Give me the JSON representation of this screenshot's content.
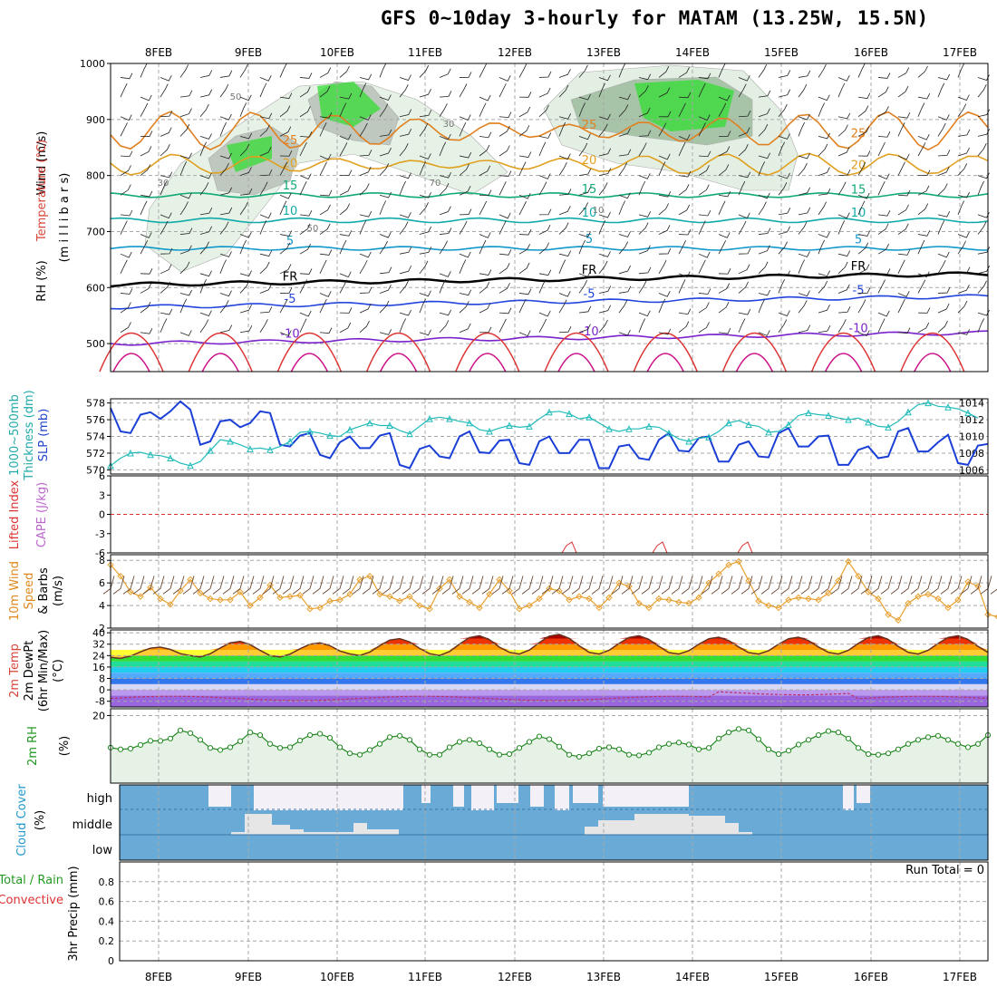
{
  "title": "GFS 0~10day 3-hourly for MATAM (13.25W, 15.5N)",
  "colors": {
    "rh_green": "#33dd33",
    "rh_grey": "#c8d8c8",
    "slp_line": "#1a3fd6",
    "thickness_line": "#22bbbb",
    "wind_speed_line": "#e8a030",
    "rh2m_line": "#228822",
    "rh2m_fill": "#e6f2e6",
    "cloud_blue": "#6aaad6",
    "cloud_white": "#f3f0f8",
    "cloud_grey": "#e6e6e6",
    "freezing_line": "#000000"
  },
  "chart_data": {
    "type": "meteogram",
    "date_labels": [
      "8FEB",
      "9FEB",
      "10FEB",
      "11FEB",
      "12FEB",
      "13FEB",
      "14FEB",
      "15FEB",
      "16FEB",
      "17FEB"
    ],
    "time_step_hours": 3,
    "run_total_label": "Run Total = 0",
    "panels": [
      {
        "name": "upper-air",
        "ylabels": [
          "Wind (m/s)",
          "Temperature (°C)",
          "RH (%)",
          "(m i l l i b a r s)"
        ],
        "yticks": [
          500,
          600,
          700,
          800,
          900,
          1000
        ],
        "ylim": [
          450,
          1000
        ],
        "isotherm_labels": [
          {
            "value": "-10",
            "color": "#7a22cc",
            "level": 500
          },
          {
            "value": "-5",
            "color": "#2244dd",
            "level": 565
          },
          {
            "value": "FR",
            "color": "#000000",
            "level": 605
          },
          {
            "value": "5",
            "color": "#1199cc",
            "level": 670
          },
          {
            "value": "10",
            "color": "#11aaaa",
            "level": 720
          },
          {
            "value": "15",
            "color": "#11aa77",
            "level": 765
          },
          {
            "value": "20",
            "color": "#e0a020",
            "level": 820
          },
          {
            "value": "25",
            "color": "#e08020",
            "level": 880
          }
        ],
        "rh_contour_labels": [
          "50",
          "30",
          "70",
          "10"
        ]
      },
      {
        "name": "thickness-slp",
        "ylabels": [
          "1000~500mb",
          "Thickness (dm)",
          "SLP (mb)"
        ],
        "left_ticks": [
          570,
          572,
          574,
          576,
          578
        ],
        "right_ticks": [
          1006,
          1008,
          1010,
          1012,
          1014
        ],
        "series": [
          {
            "name": "SLP",
            "values": [
              1013.4,
              1010.6,
              1010.4,
              1012.6,
              1012.9,
              1012.1,
              1013.0,
              1014.2,
              1013.2,
              1009.0,
              1009.4,
              1011.8,
              1012.0,
              1011.1,
              1011.6,
              1013.0,
              1012.8,
              1009.0,
              1008.8,
              1010.1,
              1010.4,
              1007.8,
              1007.4,
              1009.3,
              1010.0,
              1008.6,
              1008.6,
              1010.1,
              1010.4,
              1006.6,
              1006.2,
              1008.5,
              1008.9,
              1007.6,
              1007.4,
              1010.0,
              1010.6,
              1008.1,
              1008.0,
              1009.5,
              1009.6,
              1006.8,
              1006.6,
              1009.4,
              1010.0,
              1008.0,
              1008.0,
              1009.6,
              1009.6,
              1006.2,
              1006.2,
              1008.8,
              1009.0,
              1007.4,
              1007.2,
              1009.6,
              1010.4,
              1008.3,
              1008.2,
              1009.8,
              1010.0,
              1007.0,
              1007.0,
              1009.0,
              1009.4,
              1007.6,
              1007.5,
              1010.4,
              1011.0,
              1008.8,
              1008.8,
              1010.0,
              1010.1,
              1006.6,
              1006.6,
              1008.4,
              1008.8,
              1007.4,
              1007.6,
              1010.6,
              1011.0,
              1008.2,
              1008.2,
              1009.3,
              1010.2,
              1006.8,
              1006.6,
              1008.9,
              1009.1
            ]
          },
          {
            "name": "Thickness",
            "values": [
              570.5,
              571.4,
              572.0,
              572.1,
              571.8,
              571.7,
              571.4,
              570.8,
              570.5,
              571.0,
              572.3,
              573.6,
              573.4,
              573.0,
              572.5,
              572.6,
              572.4,
              572.8,
              573.4,
              574.5,
              574.6,
              574.4,
              574.1,
              574.0,
              574.8,
              575.2,
              575.6,
              575.3,
              575.3,
              574.7,
              574.3,
              575.2,
              576.1,
              576.3,
              576.1,
              575.8,
              575.6,
              574.8,
              574.6,
              575.0,
              575.3,
              575.1,
              575.2,
              576.1,
              576.9,
              577.0,
              576.7,
              576.1,
              576.3,
              575.6,
              574.9,
              574.6,
              574.9,
              574.9,
              575.2,
              575.1,
              574.4,
              573.7,
              573.4,
              573.8,
              573.9,
              574.6,
              575.6,
              575.9,
              575.4,
              575.2,
              574.5,
              574.6,
              575.4,
              576.5,
              576.8,
              576.6,
              576.5,
              576.2,
              576.0,
              576.2,
              575.7,
              575.2,
              575.1,
              575.8,
              576.9,
              577.8,
              578.0,
              577.6,
              577.5,
              577.3,
              576.8,
              576.2
            ]
          }
        ]
      },
      {
        "name": "lifted-index-cape",
        "ylabels": [
          "Lifted Index",
          "CAPE (J/kg)"
        ],
        "yticks": [
          6,
          3,
          0,
          -3,
          -6
        ],
        "ylim": [
          6,
          -6
        ],
        "reference_line": 0
      },
      {
        "name": "wind10m",
        "ylabels": [
          "10m Wind",
          "Speed",
          "& Barbs",
          "(m/s)"
        ],
        "yticks": [
          2,
          4,
          6,
          8
        ],
        "ylim": [
          2,
          8.5
        ],
        "series": [
          {
            "name": "Speed",
            "values": [
              7.6,
              6.6,
              5.2,
              4.8,
              5.6,
              4.6,
              4.1,
              5.3,
              6.3,
              5.1,
              4.6,
              4.5,
              4.5,
              5.2,
              4.0,
              4.7,
              5.8,
              4.7,
              4.8,
              4.9,
              3.7,
              3.8,
              4.4,
              4.5,
              5.0,
              6.3,
              6.6,
              5.0,
              4.8,
              4.4,
              4.8,
              4.0,
              3.7,
              5.5,
              6.3,
              4.8,
              4.3,
              3.8,
              5.0,
              6.3,
              5.3,
              3.7,
              4.0,
              4.6,
              5.5,
              5.3,
              4.5,
              4.8,
              4.6,
              3.8,
              4.7,
              6.0,
              5.7,
              4.2,
              3.8,
              4.6,
              4.5,
              4.3,
              4.2,
              4.7,
              6.0,
              6.8,
              7.6,
              7.9,
              6.2,
              4.4,
              4.0,
              3.8,
              4.5,
              4.7,
              4.6,
              4.5,
              5.1,
              6.2,
              7.9,
              6.6,
              5.2,
              4.6,
              3.2,
              2.7,
              4.2,
              4.8,
              5.0,
              4.6,
              3.8,
              4.5,
              6.1,
              5.7,
              3.2,
              3.0,
              4.4,
              4.7,
              3.0
            ]
          }
        ]
      },
      {
        "name": "temp2m",
        "ylabels": [
          "2m Temp",
          "2m DewPt",
          "(6hr Min/Max)",
          "(°C)"
        ],
        "yticks": [
          40,
          32,
          24,
          16,
          8,
          0,
          -8
        ],
        "ylim": [
          -12,
          42
        ],
        "max_temp_peaks": [
          30,
          34,
          33,
          36,
          38,
          39,
          38,
          37,
          37,
          38
        ],
        "min_temp_troughs": [
          22,
          23,
          23,
          24,
          24,
          25,
          25,
          25,
          25,
          25
        ]
      },
      {
        "name": "rh2m",
        "ylabels": [
          "2m RH",
          "(%)"
        ],
        "yticks": [
          20
        ],
        "ylim": [
          0,
          22
        ],
        "series": [
          {
            "name": "RH",
            "values": [
              10.5,
              10.0,
              10.2,
              11.3,
              12.5,
              12.5,
              13.2,
              15.6,
              14.8,
              12.8,
              10.4,
              9.8,
              10.6,
              12.4,
              15.0,
              14.2,
              11.6,
              10.4,
              10.6,
              12.6,
              14.2,
              14.6,
              13.4,
              10.6,
              8.8,
              8.4,
              9.8,
              11.6,
              13.6,
              14.0,
              12.8,
              10.0,
              8.4,
              8.4,
              10.6,
              12.2,
              12.8,
              11.8,
              10.0,
              8.4,
              8.6,
              10.4,
              12.2,
              13.8,
              13.0,
              10.8,
              8.4,
              7.8,
              8.8,
              10.2,
              10.6,
              10.0,
              8.4,
              8.2,
              9.0,
              10.6,
              11.6,
              12.0,
              11.4,
              10.0,
              10.4,
              13.2,
              15.0,
              16.0,
              15.6,
              13.0,
              10.0,
              8.6,
              9.6,
              11.4,
              12.8,
              14.2,
              15.4,
              15.0,
              13.2,
              10.4,
              8.6,
              8.4,
              8.8,
              10.0,
              11.6,
              12.8,
              13.6,
              14.0,
              12.8,
              11.6,
              10.6,
              11.6,
              14.2
            ]
          }
        ]
      },
      {
        "name": "cloud-cover",
        "ylabels": [
          "Cloud Cover",
          "(%)"
        ],
        "yticks": [
          "high",
          "middle",
          "low"
        ]
      },
      {
        "name": "precip",
        "ylabels": [
          "Total / Rain",
          "Convective",
          "3hr Precip (mm)"
        ],
        "yticks": [
          0,
          0.2,
          0.4,
          0.6,
          0.8
        ],
        "ylim": [
          0,
          1.0
        ],
        "values": []
      }
    ]
  }
}
